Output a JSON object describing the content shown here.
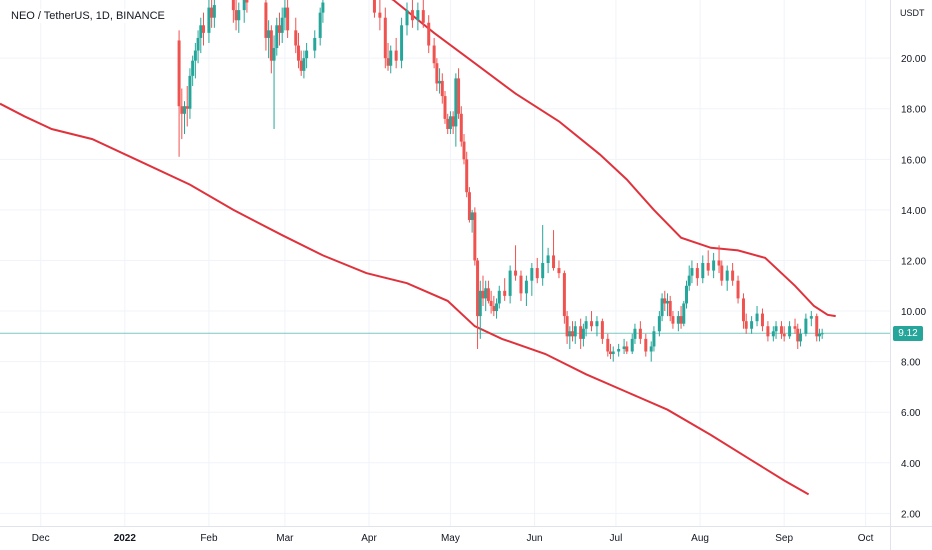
{
  "header": {
    "title": "NEO / TetherUS, 1D, BINANCE"
  },
  "colors": {
    "up": "#26a69a",
    "down": "#ef5350",
    "wick": "#8f8f8f",
    "ma": "#e0323c",
    "last_price_line": "#26a69a",
    "grid": "#f0f3fa",
    "axis_text": "#131722"
  },
  "chart_data": {
    "type": "candlestick",
    "title": "NEO / TetherUS, 1D, BINANCE",
    "symbol": "NEO / TetherUS",
    "interval": "1D",
    "exchange": "BINANCE",
    "y_axis": {
      "unit_label": "USDT",
      "ticks": [
        "2.00",
        "4.00",
        "6.00",
        "8.00",
        "10.00",
        "12.00",
        "14.00",
        "16.00",
        "18.00",
        "20.00"
      ],
      "ylim": [
        1.5,
        22.3
      ]
    },
    "x_axis": {
      "ticks": [
        "Dec",
        "2022",
        "Feb",
        "Mar",
        "Apr",
        "May",
        "Jun",
        "Jul",
        "Aug",
        "Sep",
        "Oct"
      ],
      "range": [
        "2021-11-16",
        "2022-10-10"
      ]
    },
    "last_price": 9.12,
    "grid": true,
    "moving_averages": [
      {
        "points": [
          [
            "2021-11-16",
            18.2
          ],
          [
            "2021-11-25",
            17.7
          ],
          [
            "2021-12-05",
            17.2
          ],
          [
            "2021-12-20",
            16.8
          ],
          [
            "2022-01-05",
            16.0
          ],
          [
            "2022-01-25",
            15.0
          ],
          [
            "2022-02-10",
            14.0
          ],
          [
            "2022-02-28",
            13.0
          ],
          [
            "2022-03-15",
            12.2
          ],
          [
            "2022-03-31",
            11.5
          ],
          [
            "2022-04-15",
            11.1
          ],
          [
            "2022-04-30",
            10.4
          ],
          [
            "2022-05-10",
            9.4
          ],
          [
            "2022-05-20",
            8.9
          ],
          [
            "2022-06-05",
            8.3
          ],
          [
            "2022-06-20",
            7.5
          ],
          [
            "2022-07-05",
            6.8
          ],
          [
            "2022-07-20",
            6.1
          ],
          [
            "2022-08-05",
            5.1
          ],
          [
            "2022-08-20",
            4.1
          ],
          [
            "2022-09-01",
            3.3
          ],
          [
            "2022-09-10",
            2.75
          ]
        ]
      },
      {
        "points": [
          [
            "2022-03-28",
            23.0
          ],
          [
            "2022-04-10",
            22.3
          ],
          [
            "2022-04-25",
            21.0
          ],
          [
            "2022-05-10",
            19.8
          ],
          [
            "2022-05-25",
            18.6
          ],
          [
            "2022-06-10",
            17.5
          ],
          [
            "2022-06-25",
            16.2
          ],
          [
            "2022-07-05",
            15.2
          ],
          [
            "2022-07-15",
            14.0
          ],
          [
            "2022-07-25",
            12.9
          ],
          [
            "2022-08-05",
            12.5
          ],
          [
            "2022-08-15",
            12.4
          ],
          [
            "2022-08-25",
            12.1
          ],
          [
            "2022-09-05",
            11.0
          ],
          [
            "2022-09-12",
            10.2
          ],
          [
            "2022-09-17",
            9.85
          ],
          [
            "2022-09-20",
            9.8
          ]
        ]
      }
    ],
    "candles": [
      [
        "2022-01-21",
        20.7,
        21.1,
        16.1,
        18.1
      ],
      [
        "2022-01-22",
        18.1,
        18.8,
        16.8,
        17.8
      ],
      [
        "2022-01-23",
        17.8,
        18.3,
        17.0,
        18.1
      ],
      [
        "2022-01-24",
        18.1,
        18.9,
        17.3,
        18.0
      ],
      [
        "2022-01-25",
        18.0,
        19.6,
        17.6,
        19.3
      ],
      [
        "2022-01-26",
        19.3,
        20.1,
        18.9,
        19.9
      ],
      [
        "2022-01-27",
        19.9,
        20.6,
        19.2,
        20.3
      ],
      [
        "2022-01-28",
        20.3,
        21.1,
        19.8,
        20.8
      ],
      [
        "2022-01-29",
        20.8,
        21.6,
        20.2,
        21.3
      ],
      [
        "2022-01-30",
        21.3,
        21.8,
        20.5,
        21.0
      ],
      [
        "2022-02-01",
        21.0,
        22.3,
        20.6,
        22.0
      ],
      [
        "2022-02-02",
        22.0,
        22.5,
        21.2,
        21.6
      ],
      [
        "2022-02-03",
        21.6,
        22.4,
        21.2,
        22.1
      ],
      [
        "2022-02-10",
        22.5,
        23.0,
        21.4,
        21.9
      ],
      [
        "2022-02-11",
        21.9,
        22.3,
        21.1,
        21.5
      ],
      [
        "2022-02-12",
        21.5,
        22.2,
        21.0,
        21.9
      ],
      [
        "2022-02-14",
        21.9,
        22.6,
        21.4,
        22.4
      ],
      [
        "2022-02-15",
        22.4,
        22.8,
        21.8,
        22.2
      ],
      [
        "2022-02-22",
        22.2,
        22.4,
        20.3,
        20.8
      ],
      [
        "2022-02-23",
        20.8,
        21.5,
        20.0,
        21.1
      ],
      [
        "2022-02-24",
        21.1,
        21.3,
        19.4,
        19.9
      ],
      [
        "2022-02-25",
        19.9,
        20.9,
        17.2,
        20.4
      ],
      [
        "2022-02-26",
        20.4,
        21.6,
        20.1,
        21.3
      ],
      [
        "2022-02-27",
        21.3,
        21.8,
        20.5,
        21.0
      ],
      [
        "2022-02-28",
        21.0,
        22.0,
        20.6,
        21.6
      ],
      [
        "2022-03-01",
        21.6,
        22.3,
        21.1,
        22.0
      ],
      [
        "2022-03-02",
        22.0,
        22.5,
        20.8,
        21.1
      ],
      [
        "2022-03-05",
        21.1,
        21.6,
        20.2,
        20.5
      ],
      [
        "2022-03-06",
        20.5,
        21.0,
        19.6,
        19.9
      ],
      [
        "2022-03-07",
        19.9,
        20.3,
        19.3,
        19.5
      ],
      [
        "2022-03-08",
        19.5,
        20.3,
        19.2,
        20.0
      ],
      [
        "2022-03-09",
        20.0,
        20.6,
        19.6,
        20.3
      ],
      [
        "2022-03-12",
        20.3,
        21.1,
        20.0,
        20.8
      ],
      [
        "2022-03-14",
        20.8,
        22.0,
        20.5,
        21.8
      ],
      [
        "2022-03-15",
        21.8,
        22.5,
        21.4,
        22.2
      ],
      [
        "2022-04-03",
        22.5,
        22.8,
        21.6,
        21.8
      ],
      [
        "2022-04-05",
        21.8,
        22.4,
        21.1,
        21.6
      ],
      [
        "2022-04-07",
        21.6,
        22.0,
        19.6,
        20.0
      ],
      [
        "2022-04-08",
        20.0,
        20.6,
        19.5,
        19.7
      ],
      [
        "2022-04-09",
        19.7,
        20.5,
        19.4,
        20.3
      ],
      [
        "2022-04-11",
        20.3,
        20.8,
        19.6,
        19.9
      ],
      [
        "2022-04-13",
        19.9,
        21.6,
        19.6,
        21.3
      ],
      [
        "2022-04-15",
        21.3,
        22.2,
        20.9,
        21.9
      ],
      [
        "2022-04-17",
        21.9,
        22.3,
        21.2,
        21.5
      ],
      [
        "2022-04-19",
        21.5,
        22.2,
        21.1,
        21.9
      ],
      [
        "2022-04-21",
        21.9,
        22.3,
        21.2,
        21.4
      ],
      [
        "2022-04-23",
        21.4,
        21.7,
        20.2,
        20.5
      ],
      [
        "2022-04-25",
        20.5,
        20.8,
        19.6,
        19.8
      ],
      [
        "2022-04-26",
        19.8,
        20.0,
        18.7,
        19.0
      ],
      [
        "2022-04-27",
        19.0,
        19.6,
        18.6,
        19.1
      ],
      [
        "2022-04-28",
        19.1,
        19.4,
        18.2,
        18.5
      ],
      [
        "2022-04-29",
        18.5,
        18.7,
        17.4,
        17.6
      ],
      [
        "2022-04-30",
        17.6,
        17.8,
        17.0,
        17.2
      ],
      [
        "2022-05-01",
        17.2,
        17.9,
        17.0,
        17.7
      ],
      [
        "2022-05-02",
        17.7,
        17.9,
        17.0,
        17.3
      ],
      [
        "2022-05-03",
        17.3,
        19.4,
        16.5,
        19.2
      ],
      [
        "2022-05-04",
        19.2,
        19.6,
        17.6,
        17.8
      ],
      [
        "2022-05-05",
        17.8,
        18.1,
        16.5,
        16.7
      ],
      [
        "2022-05-06",
        16.7,
        17.0,
        15.8,
        16.0
      ],
      [
        "2022-05-07",
        16.0,
        16.3,
        14.5,
        14.7
      ],
      [
        "2022-05-08",
        14.7,
        14.9,
        13.5,
        13.6
      ],
      [
        "2022-05-09",
        13.6,
        14.0,
        13.1,
        13.9
      ],
      [
        "2022-05-10",
        13.9,
        14.1,
        11.8,
        12.0
      ],
      [
        "2022-05-11",
        12.0,
        12.1,
        8.5,
        9.8
      ],
      [
        "2022-05-12",
        9.8,
        11.2,
        8.9,
        10.8
      ],
      [
        "2022-05-13",
        10.8,
        11.4,
        10.2,
        10.5
      ],
      [
        "2022-05-14",
        10.5,
        11.2,
        10.0,
        10.9
      ],
      [
        "2022-05-15",
        10.9,
        11.2,
        10.3,
        10.4
      ],
      [
        "2022-05-16",
        10.4,
        10.8,
        9.9,
        10.2
      ],
      [
        "2022-05-17",
        10.2,
        10.6,
        9.8,
        10.0
      ],
      [
        "2022-05-18",
        10.0,
        10.5,
        9.7,
        10.3
      ],
      [
        "2022-05-19",
        10.3,
        11.0,
        10.1,
        10.8
      ],
      [
        "2022-05-21",
        10.8,
        11.3,
        10.4,
        10.6
      ],
      [
        "2022-05-23",
        10.6,
        11.8,
        10.3,
        11.6
      ],
      [
        "2022-05-25",
        11.6,
        12.6,
        11.2,
        11.4
      ],
      [
        "2022-05-27",
        11.4,
        11.6,
        10.4,
        10.7
      ],
      [
        "2022-05-29",
        10.7,
        11.4,
        10.2,
        11.2
      ],
      [
        "2022-05-31",
        11.2,
        11.9,
        10.6,
        11.7
      ],
      [
        "2022-06-02",
        11.7,
        12.1,
        11.1,
        11.3
      ],
      [
        "2022-06-04",
        11.3,
        13.4,
        11.0,
        11.9
      ],
      [
        "2022-06-06",
        11.9,
        12.5,
        11.5,
        12.2
      ],
      [
        "2022-06-08",
        12.2,
        13.2,
        11.6,
        11.7
      ],
      [
        "2022-06-10",
        11.7,
        12.0,
        11.3,
        11.5
      ],
      [
        "2022-06-12",
        11.5,
        11.6,
        9.5,
        9.8
      ],
      [
        "2022-06-13",
        9.8,
        10.0,
        8.7,
        9.0
      ],
      [
        "2022-06-14",
        9.0,
        9.4,
        8.5,
        9.2
      ],
      [
        "2022-06-15",
        9.2,
        9.6,
        8.8,
        9.0
      ],
      [
        "2022-06-16",
        9.0,
        9.6,
        8.7,
        9.4
      ],
      [
        "2022-06-18",
        9.4,
        9.7,
        8.5,
        8.9
      ],
      [
        "2022-06-19",
        8.9,
        9.5,
        8.6,
        9.3
      ],
      [
        "2022-06-20",
        9.3,
        9.8,
        9.0,
        9.6
      ],
      [
        "2022-06-22",
        9.6,
        10.0,
        9.2,
        9.4
      ],
      [
        "2022-06-24",
        9.4,
        9.8,
        9.0,
        9.6
      ],
      [
        "2022-06-26",
        9.6,
        9.7,
        8.7,
        8.9
      ],
      [
        "2022-06-28",
        8.9,
        9.1,
        8.2,
        8.4
      ],
      [
        "2022-06-29",
        8.4,
        8.7,
        8.1,
        8.3
      ],
      [
        "2022-06-30",
        8.3,
        8.6,
        8.0,
        8.4
      ],
      [
        "2022-07-02",
        8.4,
        8.7,
        8.2,
        8.5
      ],
      [
        "2022-07-04",
        8.5,
        8.9,
        8.3,
        8.6
      ],
      [
        "2022-07-05",
        8.6,
        8.8,
        8.3,
        8.4
      ],
      [
        "2022-07-07",
        8.4,
        9.1,
        8.3,
        8.9
      ],
      [
        "2022-07-08",
        8.9,
        9.5,
        8.7,
        9.3
      ],
      [
        "2022-07-10",
        9.3,
        9.6,
        8.7,
        8.9
      ],
      [
        "2022-07-12",
        8.9,
        9.1,
        8.2,
        8.4
      ],
      [
        "2022-07-14",
        8.4,
        8.8,
        8.0,
        8.6
      ],
      [
        "2022-07-15",
        8.6,
        9.4,
        8.4,
        9.2
      ],
      [
        "2022-07-17",
        9.2,
        10.0,
        9.0,
        9.8
      ],
      [
        "2022-07-18",
        9.8,
        10.7,
        9.6,
        10.5
      ],
      [
        "2022-07-19",
        10.5,
        10.8,
        10.0,
        10.3
      ],
      [
        "2022-07-20",
        10.3,
        10.7,
        9.8,
        10.4
      ],
      [
        "2022-07-21",
        10.4,
        10.6,
        9.6,
        9.8
      ],
      [
        "2022-07-22",
        9.8,
        10.0,
        9.3,
        9.5
      ],
      [
        "2022-07-24",
        9.5,
        10.0,
        9.2,
        9.8
      ],
      [
        "2022-07-25",
        9.8,
        10.2,
        9.3,
        9.5
      ],
      [
        "2022-07-26",
        9.5,
        10.4,
        9.4,
        10.3
      ],
      [
        "2022-07-27",
        10.3,
        11.2,
        10.1,
        11.0
      ],
      [
        "2022-07-28",
        11.0,
        11.8,
        10.8,
        11.4
      ],
      [
        "2022-07-29",
        11.4,
        12.0,
        11.1,
        11.7
      ],
      [
        "2022-07-31",
        11.7,
        11.9,
        11.0,
        11.3
      ],
      [
        "2022-08-02",
        11.3,
        12.2,
        11.1,
        11.9
      ],
      [
        "2022-08-04",
        11.9,
        12.4,
        11.4,
        11.6
      ],
      [
        "2022-08-06",
        11.6,
        12.3,
        11.3,
        12.0
      ],
      [
        "2022-08-08",
        12.0,
        12.6,
        11.5,
        11.8
      ],
      [
        "2022-08-09",
        11.8,
        12.0,
        11.0,
        11.2
      ],
      [
        "2022-08-11",
        11.2,
        11.8,
        10.8,
        11.6
      ],
      [
        "2022-08-13",
        11.6,
        11.9,
        11.0,
        11.2
      ],
      [
        "2022-08-15",
        11.2,
        11.4,
        10.3,
        10.5
      ],
      [
        "2022-08-17",
        10.5,
        10.7,
        9.3,
        9.6
      ],
      [
        "2022-08-18",
        9.6,
        9.9,
        9.1,
        9.3
      ],
      [
        "2022-08-20",
        9.3,
        9.8,
        9.1,
        9.6
      ],
      [
        "2022-08-22",
        9.6,
        10.2,
        9.4,
        9.9
      ],
      [
        "2022-08-24",
        9.9,
        10.1,
        9.2,
        9.4
      ],
      [
        "2022-08-26",
        9.4,
        9.6,
        8.8,
        9.0
      ],
      [
        "2022-08-28",
        9.0,
        9.4,
        8.8,
        9.2
      ],
      [
        "2022-08-29",
        9.2,
        9.6,
        8.9,
        9.4
      ],
      [
        "2022-08-31",
        9.4,
        9.6,
        8.9,
        9.1
      ],
      [
        "2022-09-01",
        9.1,
        9.4,
        8.8,
        9.0
      ],
      [
        "2022-09-03",
        9.0,
        9.6,
        8.9,
        9.4
      ],
      [
        "2022-09-05",
        9.4,
        9.7,
        9.1,
        9.3
      ],
      [
        "2022-09-06",
        9.3,
        9.5,
        8.5,
        8.8
      ],
      [
        "2022-09-07",
        8.8,
        9.3,
        8.6,
        9.1
      ],
      [
        "2022-09-09",
        9.1,
        9.9,
        9.0,
        9.7
      ],
      [
        "2022-09-11",
        9.7,
        10.0,
        9.4,
        9.8
      ],
      [
        "2022-09-13",
        9.8,
        9.9,
        8.8,
        9.0
      ],
      [
        "2022-09-14",
        9.0,
        9.3,
        8.8,
        9.1
      ],
      [
        "2022-09-15",
        9.1,
        9.3,
        8.9,
        9.12
      ]
    ]
  }
}
